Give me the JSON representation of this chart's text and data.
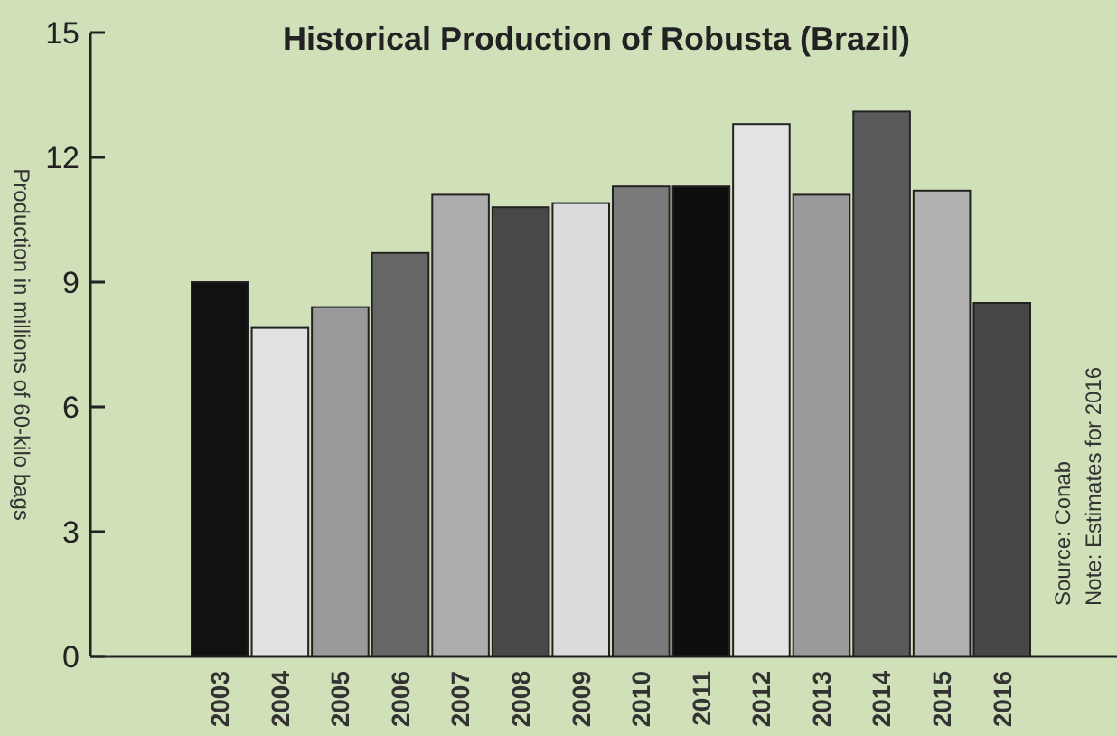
{
  "chart_data": {
    "type": "bar",
    "title": "Historical Production of Robusta (Brazil)",
    "ylabel": "Production in millions of 60-kilo bags",
    "categories": [
      "2003",
      "2004",
      "2005",
      "2006",
      "2007",
      "2008",
      "2009",
      "2010",
      "2011",
      "2012",
      "2013",
      "2014",
      "2015",
      "2016"
    ],
    "values": [
      9.0,
      7.9,
      8.4,
      9.7,
      11.1,
      10.8,
      10.9,
      11.3,
      11.3,
      12.8,
      11.1,
      13.1,
      11.2,
      8.5
    ],
    "colors": [
      "#111111",
      "#e2e2e2",
      "#9a9a9a",
      "#666666",
      "#adadad",
      "#484848",
      "#dcdcdc",
      "#7a7a7a",
      "#0e0e0e",
      "#e4e4e4",
      "#9a9a9a",
      "#5a5a5a",
      "#b0b0b0",
      "#464646"
    ],
    "ylim": [
      0,
      15
    ],
    "yticks": [
      0,
      3,
      6,
      9,
      12,
      15
    ],
    "grid": false,
    "annotations": [
      "Source: Conab",
      "Note: Estimates for 2016"
    ]
  }
}
